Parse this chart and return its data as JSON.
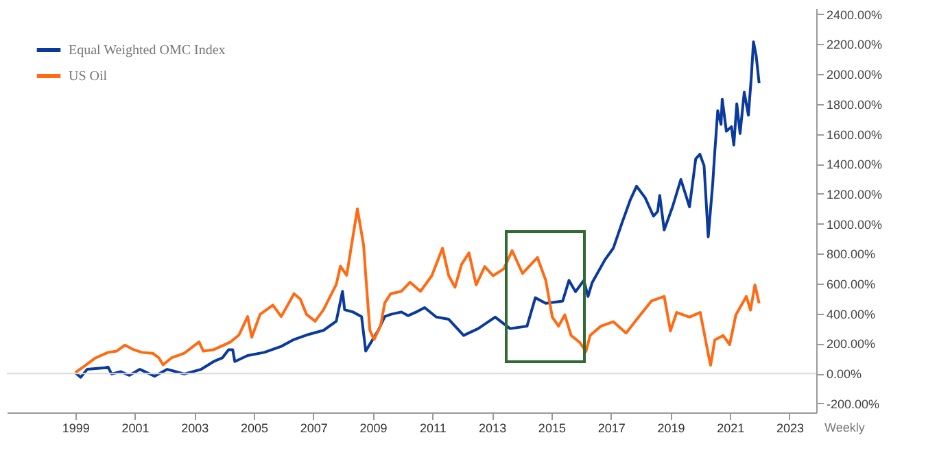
{
  "chart_data": {
    "type": "line",
    "xlim": [
      1996.7,
      2023.9
    ],
    "ylim": [
      -260,
      2440
    ],
    "xticks": [
      1999,
      2001,
      2003,
      2005,
      2007,
      2009,
      2011,
      2013,
      2015,
      2017,
      2019,
      2021,
      2023
    ],
    "yticks": [
      {
        "value": -200,
        "label": "-200.00%"
      },
      {
        "value": 0,
        "label": "0.00%"
      },
      {
        "value": 200,
        "label": "200.00%"
      },
      {
        "value": 400,
        "label": "400.00%"
      },
      {
        "value": 600,
        "label": "600.00%"
      },
      {
        "value": 800,
        "label": "800.00%"
      },
      {
        "value": 1000,
        "label": "1000.00%"
      },
      {
        "value": 1200,
        "label": "1200.00%"
      },
      {
        "value": 1400,
        "label": "1400.00%"
      },
      {
        "value": 1600,
        "label": "1600.00%"
      },
      {
        "value": 1800,
        "label": "1800.00%"
      },
      {
        "value": 2000,
        "label": "2000.00%"
      },
      {
        "value": 2200,
        "label": "2200.00%"
      },
      {
        "value": 2400,
        "label": "2400.00%"
      }
    ],
    "grid": false,
    "legend": "top left",
    "line_style": "solid",
    "marker": "none",
    "series": [
      {
        "name": "Equal Weighted OMC Index",
        "color": "#0a3a9c",
        "x": [
          1999.0,
          1999.18,
          1999.4,
          1999.96,
          2000.1,
          2000.22,
          2000.53,
          2000.82,
          2001.17,
          2001.67,
          2002.09,
          2002.66,
          2003.23,
          2003.65,
          2003.94,
          2004.15,
          2004.29,
          2004.36,
          2004.79,
          2005.35,
          2005.92,
          2006.35,
          2006.77,
          2007.34,
          2007.77,
          2007.98,
          2008.05,
          2008.33,
          2008.62,
          2008.76,
          2008.9,
          2009.18,
          2009.4,
          2009.6,
          2009.96,
          2010.18,
          2010.46,
          2010.74,
          2011.13,
          2011.55,
          2012.05,
          2012.54,
          2013.11,
          2013.61,
          2014.18,
          2014.46,
          2014.81,
          2015.38,
          2015.59,
          2015.81,
          2016.09,
          2016.23,
          2016.37,
          2016.8,
          2017.08,
          2017.37,
          2017.65,
          2017.86,
          2018.15,
          2018.43,
          2018.57,
          2018.64,
          2018.79,
          2019.07,
          2019.35,
          2019.64,
          2019.85,
          2019.99,
          2020.13,
          2020.27,
          2020.42,
          2020.49,
          2020.59,
          2020.7,
          2020.74,
          2020.88,
          2021.05,
          2021.13,
          2021.23,
          2021.34,
          2021.48,
          2021.62,
          2021.72,
          2021.79,
          2021.88,
          2021.98
        ],
        "values": [
          6,
          -25,
          28,
          37,
          43,
          -3,
          12,
          -12,
          28,
          -18,
          28,
          -3,
          28,
          80,
          104,
          159,
          159,
          80,
          120,
          141,
          181,
          227,
          257,
          288,
          349,
          549,
          426,
          411,
          380,
          150,
          196,
          288,
          380,
          395,
          411,
          386,
          411,
          440,
          377,
          362,
          254,
          300,
          377,
          300,
          316,
          506,
          469,
          484,
          622,
          546,
          622,
          515,
          607,
          760,
          837,
          1005,
          1159,
          1251,
          1174,
          1051,
          1082,
          1189,
          959,
          1113,
          1296,
          1113,
          1434,
          1465,
          1388,
          913,
          1266,
          1480,
          1756,
          1664,
          1833,
          1618,
          1649,
          1526,
          1802,
          1603,
          1879,
          1726,
          1986,
          2216,
          2124,
          1940
        ]
      },
      {
        "name": "US Oil",
        "color": "#ff6a13",
        "x": [
          1999.0,
          1999.26,
          1999.68,
          2000.1,
          2000.39,
          2000.67,
          2000.96,
          2001.24,
          2001.6,
          2001.81,
          2001.95,
          2002.23,
          2002.66,
          2003.16,
          2003.3,
          2003.65,
          2004.22,
          2004.5,
          2004.79,
          2004.93,
          2005.21,
          2005.64,
          2005.92,
          2006.35,
          2006.56,
          2006.77,
          2007.06,
          2007.34,
          2007.77,
          2007.91,
          2008.12,
          2008.48,
          2008.69,
          2008.76,
          2008.9,
          2009.04,
          2009.26,
          2009.4,
          2009.6,
          2009.96,
          2010.25,
          2010.6,
          2010.98,
          2011.34,
          2011.55,
          2011.76,
          2011.98,
          2012.23,
          2012.47,
          2012.76,
          2013.04,
          2013.4,
          2013.68,
          2014.03,
          2014.53,
          2014.81,
          2015.03,
          2015.24,
          2015.45,
          2015.66,
          2015.95,
          2016.16,
          2016.3,
          2016.66,
          2017.08,
          2017.51,
          2017.93,
          2018.36,
          2018.79,
          2019.0,
          2019.21,
          2019.64,
          2020.0,
          2020.27,
          2020.35,
          2020.49,
          2020.77,
          2020.99,
          2021.2,
          2021.55,
          2021.69,
          2021.84,
          2021.98
        ],
        "values": [
          6,
          43,
          104,
          141,
          150,
          190,
          159,
          141,
          135,
          104,
          58,
          104,
          135,
          211,
          150,
          159,
          211,
          257,
          380,
          242,
          395,
          457,
          380,
          533,
          497,
          395,
          349,
          426,
          595,
          717,
          656,
          1100,
          855,
          656,
          288,
          227,
          319,
          472,
          533,
          549,
          610,
          549,
          653,
          837,
          653,
          576,
          729,
          806,
          592,
          714,
          653,
          699,
          821,
          668,
          775,
          622,
          377,
          316,
          392,
          254,
          208,
          147,
          254,
          316,
          346,
          270,
          377,
          484,
          515,
          285,
          408,
          377,
          408,
          132,
          55,
          224,
          254,
          193,
          392,
          515,
          423,
          592,
          469
        ]
      }
    ],
    "ref_lines": [
      {
        "axis": "y",
        "value": 0,
        "color": "#d9d9d9"
      }
    ],
    "annotations": [
      "Weekly"
    ]
  }
}
